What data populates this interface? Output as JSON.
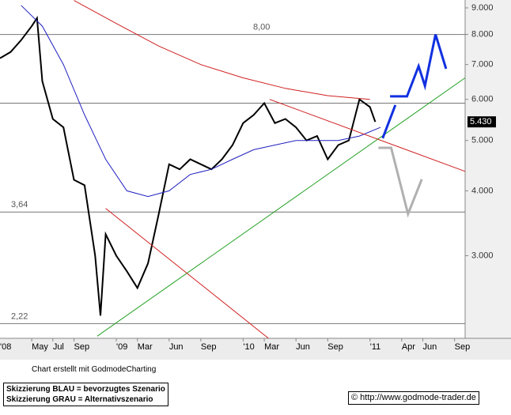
{
  "chart_data": {
    "type": "line",
    "yscale": "log",
    "xlim": [
      1,
      45
    ],
    "ylim": [
      2.08,
      9.32
    ],
    "xticks": [
      {
        "value": 0,
        "label": "'08"
      },
      {
        "value": 4,
        "label": "May"
      },
      {
        "value": 6,
        "label": "Jul"
      },
      {
        "value": 8,
        "label": "Sep"
      },
      {
        "value": 12,
        "label": "'09"
      },
      {
        "value": 14,
        "label": "Mar"
      },
      {
        "value": 17,
        "label": "Jun"
      },
      {
        "value": 20,
        "label": "Sep"
      },
      {
        "value": 24,
        "label": "'10"
      },
      {
        "value": 26,
        "label": "Mar"
      },
      {
        "value": 29,
        "label": "Jun"
      },
      {
        "value": 32,
        "label": "Sep"
      },
      {
        "value": 36,
        "label": "'11"
      },
      {
        "value": 39,
        "label": "Apr"
      },
      {
        "value": 41,
        "label": "Jun"
      },
      {
        "value": 44,
        "label": "Sep"
      }
    ],
    "yticks": [
      {
        "value": 3,
        "label": "3.000"
      },
      {
        "value": 4,
        "label": "4.000"
      },
      {
        "value": 5,
        "label": "5.000"
      },
      {
        "value": 6,
        "label": "6.000"
      },
      {
        "value": 7,
        "label": "7.000"
      },
      {
        "value": 8,
        "label": "8.000"
      },
      {
        "value": 9,
        "label": "9.000"
      }
    ],
    "levels": [
      {
        "value": 8.0,
        "label": "8,00"
      },
      {
        "value": 3.64,
        "label": "3,64"
      },
      {
        "value": 2.22,
        "label": "2,22"
      },
      {
        "value": 5.9
      }
    ],
    "last_price": {
      "value": 5.43,
      "label": "5.430"
    },
    "series": [
      {
        "color": "#000000",
        "width": 2,
        "x": [
          1,
          2,
          3,
          4,
          4.5,
          5,
          6,
          7,
          8,
          9,
          10,
          10.5,
          11,
          12,
          13,
          14,
          15,
          16,
          17,
          18,
          19,
          20,
          21,
          22,
          23,
          24,
          25,
          26,
          27,
          28,
          29,
          30,
          31,
          32,
          33,
          34,
          35,
          36,
          36.5
        ],
        "values": [
          7.2,
          7.4,
          7.8,
          8.3,
          8.6,
          6.5,
          5.5,
          5.3,
          4.2,
          4.1,
          3.0,
          2.3,
          3.3,
          3.0,
          2.8,
          2.6,
          2.9,
          3.6,
          4.5,
          4.4,
          4.6,
          4.5,
          4.4,
          4.6,
          4.9,
          5.4,
          5.6,
          5.9,
          5.4,
          5.5,
          5.3,
          5.0,
          5.1,
          4.6,
          4.9,
          5.0,
          6.0,
          5.8,
          5.43
        ]
      },
      {
        "color": "#2020c0",
        "width": 1,
        "x": [
          3,
          5,
          7,
          9,
          11,
          13,
          15,
          17,
          19,
          21,
          23,
          25,
          27,
          29,
          31,
          33,
          35,
          37
        ],
        "values": [
          9.1,
          8.3,
          7.0,
          5.6,
          4.6,
          4.0,
          3.9,
          4.0,
          4.3,
          4.4,
          4.6,
          4.8,
          4.9,
          5.0,
          5.0,
          5.0,
          5.1,
          5.3
        ]
      },
      {
        "color": "#d02020",
        "width": 1,
        "x": [
          8,
          12,
          16,
          20,
          24,
          28,
          32,
          36
        ],
        "values": [
          9.3,
          8.4,
          7.6,
          7.0,
          6.6,
          6.3,
          6.1,
          6.0
        ]
      },
      {
        "color": "#20a020",
        "width": 1,
        "x": [
          10.2,
          45
        ],
        "values": [
          2.1,
          6.6
        ]
      },
      {
        "color": "#d02020",
        "width": 1,
        "x": [
          11,
          26.4
        ],
        "values": [
          3.7,
          2.08
        ]
      },
      {
        "color": "#d02020",
        "width": 1,
        "x": [
          26.5,
          45
        ],
        "values": [
          6.0,
          4.36
        ]
      },
      {
        "color": "#1030e0",
        "width": 3,
        "x": [
          37.2,
          38.4
        ],
        "values": [
          5.05,
          5.85
        ]
      },
      {
        "color": "#1030e0",
        "width": 3,
        "x": [
          37.9,
          39.5,
          40.6,
          41.2,
          42.2,
          43.2
        ],
        "values": [
          6.08,
          6.08,
          6.95,
          6.37,
          8.0,
          6.87
        ]
      },
      {
        "color": "#b0b0b0",
        "width": 3,
        "x": [
          36.8,
          38,
          39.6,
          40.9
        ],
        "values": [
          4.84,
          4.84,
          3.61,
          4.21
        ]
      }
    ]
  },
  "footer": {
    "credit": "Chart erstellt mit GodmodeCharting",
    "legend": [
      "Skizzierung BLAU = bevorzugtes Szenario",
      "Skizzierung GRAU = Alternativszenario"
    ],
    "url": "© http://www.godmode-trader.de"
  }
}
